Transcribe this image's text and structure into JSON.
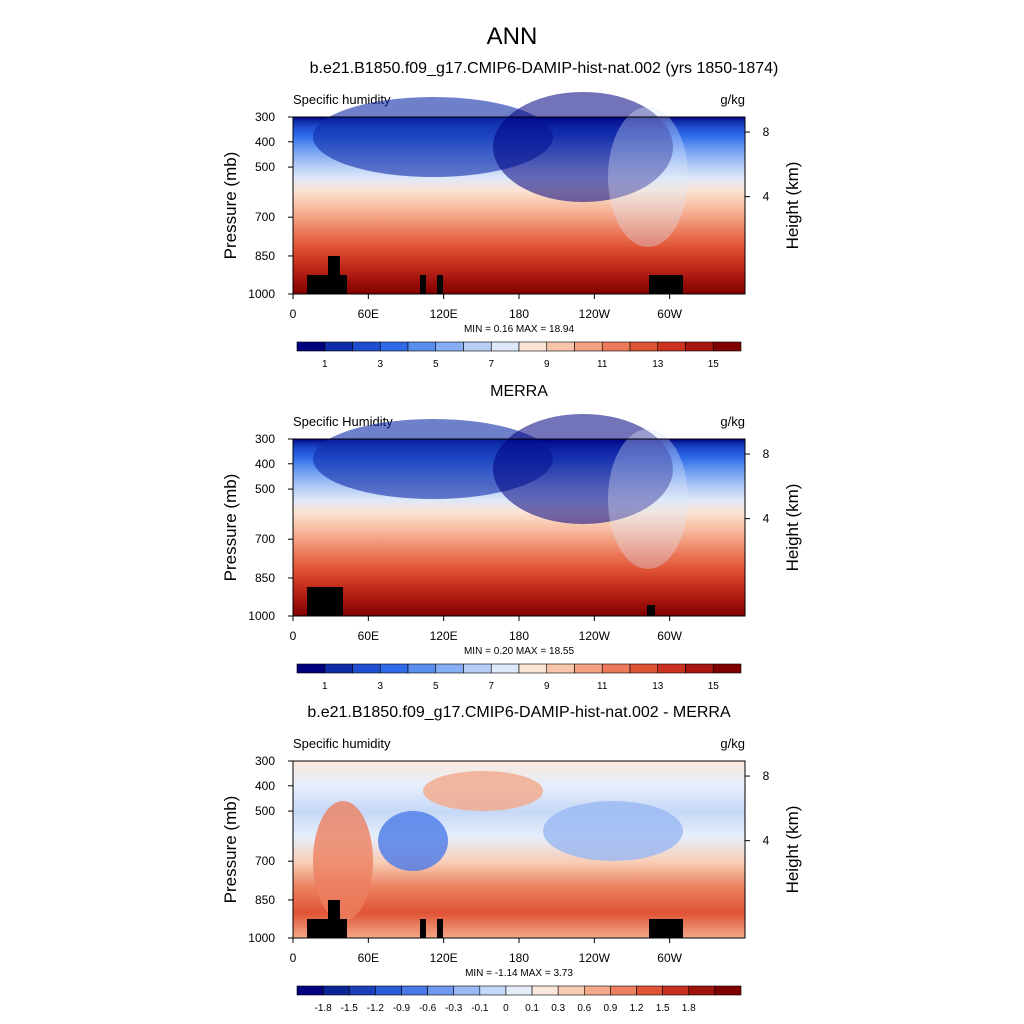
{
  "figure_title": "ANN",
  "chart_data": [
    {
      "type": "heatmap",
      "title": "b.e21.B1850.f09_g17.CMIP6-DAMIP-hist-nat.002 (yrs 1850-1874)",
      "subtitle_left": "Specific humidity",
      "subtitle_right": "g/kg",
      "ylabel": "Pressure (mb)",
      "ylabel_right": "Height (km)",
      "x_ticks": [
        "0",
        "60E",
        "120E",
        "180",
        "120W",
        "60W"
      ],
      "y_ticks": [
        "300",
        "400",
        "500",
        "700",
        "850",
        "1000"
      ],
      "y_ticks_right": [
        "8",
        "4"
      ],
      "stats": "MIN =   0.16  MAX =  18.94",
      "colorbar_labels": [
        "1",
        "3",
        "5",
        "7",
        "9",
        "11",
        "13",
        "15"
      ],
      "colorbar_colors": [
        "#00007f",
        "#0f2ca8",
        "#1f4fd0",
        "#2f6ae8",
        "#5a8ff0",
        "#86aef4",
        "#b6cdf6",
        "#dde8fa",
        "#fbe4d4",
        "#f8c5ab",
        "#f3a183",
        "#ec7a5a",
        "#e05436",
        "#cb3320",
        "#a8160f",
        "#800000"
      ]
    },
    {
      "type": "heatmap",
      "title": "MERRA",
      "subtitle_left": "Specific Humidity",
      "subtitle_right": "g/kg",
      "ylabel": "Pressure (mb)",
      "ylabel_right": "Height (km)",
      "x_ticks": [
        "0",
        "60E",
        "120E",
        "180",
        "120W",
        "60W"
      ],
      "y_ticks": [
        "300",
        "400",
        "500",
        "700",
        "850",
        "1000"
      ],
      "y_ticks_right": [
        "8",
        "4"
      ],
      "stats": "MIN =   0.20  MAX =  18.55",
      "colorbar_labels": [
        "1",
        "3",
        "5",
        "7",
        "9",
        "11",
        "13",
        "15"
      ],
      "colorbar_colors": [
        "#00007f",
        "#0f2ca8",
        "#1f4fd0",
        "#2f6ae8",
        "#5a8ff0",
        "#86aef4",
        "#b6cdf6",
        "#dde8fa",
        "#fbe4d4",
        "#f8c5ab",
        "#f3a183",
        "#ec7a5a",
        "#e05436",
        "#cb3320",
        "#a8160f",
        "#800000"
      ]
    },
    {
      "type": "heatmap",
      "title": "b.e21.B1850.f09_g17.CMIP6-DAMIP-hist-nat.002 - MERRA",
      "subtitle_left": "Specific humidity",
      "subtitle_right": "g/kg",
      "ylabel": "Pressure (mb)",
      "ylabel_right": "Height (km)",
      "x_ticks": [
        "0",
        "60E",
        "120E",
        "180",
        "120W",
        "60W"
      ],
      "y_ticks": [
        "300",
        "400",
        "500",
        "700",
        "850",
        "1000"
      ],
      "y_ticks_right": [
        "8",
        "4"
      ],
      "stats": "MIN =  -1.14  MAX =   3.73",
      "colorbar_labels": [
        "-1.8",
        "-1.5",
        "-1.2",
        "-0.9",
        "-0.6",
        "-0.3",
        "-0.1",
        "0",
        "0.1",
        "0.3",
        "0.6",
        "0.9",
        "1.2",
        "1.5",
        "1.8"
      ],
      "colorbar_colors": [
        "#00007f",
        "#0c2596",
        "#1a3fb8",
        "#2a5bd8",
        "#4a7ae8",
        "#6f98ef",
        "#9ab8f3",
        "#c6d8f7",
        "#e6eefb",
        "#fbe8dc",
        "#f8cdb5",
        "#f3a98a",
        "#ec8060",
        "#e05436",
        "#c93020",
        "#a0140e",
        "#800000"
      ]
    }
  ]
}
